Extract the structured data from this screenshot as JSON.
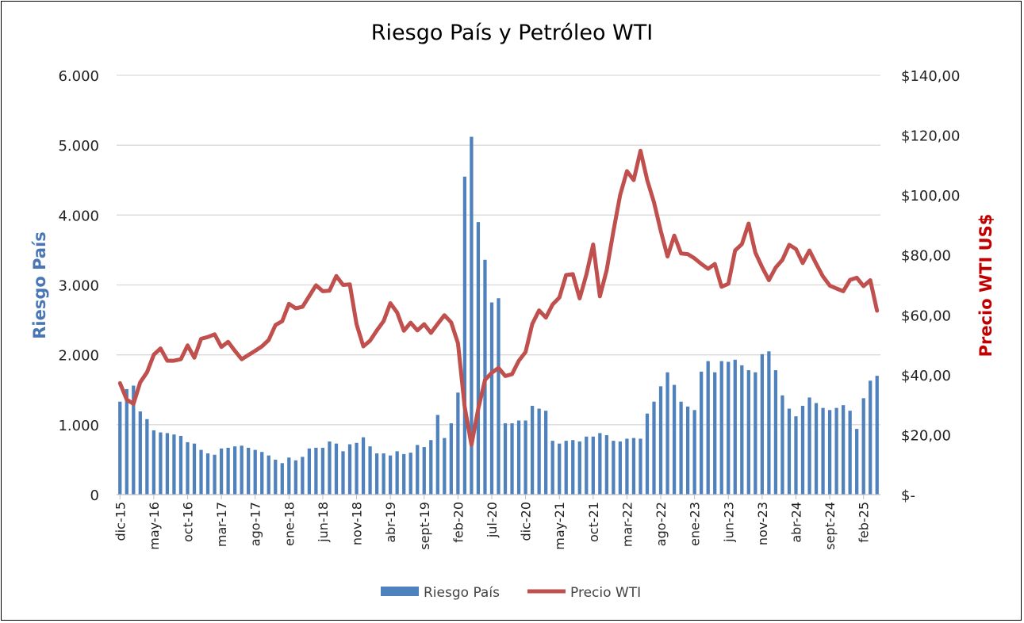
{
  "chart_data": {
    "type": "bar+line",
    "title": "Riesgo País y Petróleo WTI",
    "ylabel_left": "Riesgo País",
    "ylabel_right": "Precio WTI US$",
    "ylim_left": [
      0,
      6000
    ],
    "ylim_right": [
      0,
      140
    ],
    "left_ticks": [
      "0",
      "1.000",
      "2.000",
      "3.000",
      "4.000",
      "5.000",
      "6.000"
    ],
    "right_ticks": [
      "$-",
      "$20,00",
      "$40,00",
      "$60,00",
      "$80,00",
      "$100,00",
      "$120,00",
      "$140,00"
    ],
    "x_tick_labels": [
      "dic-15",
      "may-16",
      "oct-16",
      "mar-17",
      "ago-17",
      "ene-18",
      "jun-18",
      "nov-18",
      "abr-19",
      "sept-19",
      "feb-20",
      "jul-20",
      "dic-20",
      "may-21",
      "oct-21",
      "mar-22",
      "ago-22",
      "ene-23",
      "jun-23",
      "nov-23",
      "abr-24",
      "sept-24",
      "feb-25"
    ],
    "first_period": "dic-15",
    "grid": true,
    "legend_position": "bottom",
    "series": [
      {
        "name": "Riesgo País",
        "type": "bar",
        "axis": "left",
        "color": "#4f81bd",
        "values": [
          1330,
          1510,
          1560,
          1190,
          1080,
          920,
          890,
          880,
          860,
          840,
          750,
          730,
          640,
          590,
          570,
          660,
          670,
          690,
          700,
          670,
          640,
          610,
          560,
          500,
          450,
          530,
          490,
          540,
          660,
          670,
          670,
          760,
          730,
          620,
          720,
          740,
          820,
          690,
          590,
          590,
          560,
          620,
          580,
          600,
          710,
          680,
          780,
          1140,
          810,
          1020,
          1460,
          4550,
          5120,
          3900,
          3360,
          2750,
          2810,
          1020,
          1020,
          1060,
          1060,
          1270,
          1230,
          1200,
          770,
          730,
          770,
          780,
          760,
          830,
          830,
          880,
          850,
          770,
          760,
          800,
          810,
          800,
          1160,
          1330,
          1550,
          1750,
          1570,
          1330,
          1260,
          1210,
          1760,
          1910,
          1750,
          1910,
          1900,
          1930,
          1850,
          1780,
          1750,
          2010,
          2050,
          1780,
          1420,
          1230,
          1120,
          1270,
          1390,
          1310,
          1240,
          1210,
          1240,
          1280,
          1200,
          940,
          1380,
          1630,
          1700
        ]
      },
      {
        "name": "Precio WTI",
        "type": "line",
        "axis": "right",
        "color": "#c0504d",
        "values": [
          37.2,
          31.7,
          30.3,
          37.5,
          40.8,
          46.7,
          48.8,
          44.7,
          44.7,
          45.2,
          49.8,
          45.7,
          52.0,
          52.6,
          53.5,
          49.3,
          51.0,
          48.0,
          45.2,
          46.6,
          48.0,
          49.5,
          51.6,
          56.6,
          57.9,
          63.7,
          62.2,
          62.7,
          66.3,
          69.9,
          67.9,
          68.1,
          73.0,
          70.0,
          70.2,
          56.9,
          49.5,
          51.4,
          54.8,
          57.9,
          63.9,
          60.8,
          54.7,
          57.4,
          54.8,
          56.9,
          54.0,
          57.0,
          59.9,
          57.5,
          50.5,
          29.2,
          16.6,
          28.6,
          38.3,
          40.7,
          42.3,
          39.6,
          40.2,
          44.7,
          47.6,
          57.0,
          61.5,
          59.1,
          63.5,
          65.8,
          73.3,
          73.6,
          65.5,
          73.5,
          83.5,
          66.2,
          75.0,
          88.0,
          100.1,
          108.0,
          105.0,
          114.8,
          105.0,
          97.6,
          88.1,
          79.5,
          86.5,
          80.5,
          80.3,
          78.9,
          77.0,
          75.4,
          77.0,
          69.4,
          70.4,
          81.5,
          83.6,
          90.5,
          80.8,
          75.9,
          71.6,
          75.8,
          78.4,
          83.4,
          82.0,
          77.3,
          81.5,
          77.1,
          72.8,
          69.8,
          68.8,
          67.9,
          71.7,
          72.4,
          69.6,
          71.6,
          61.4
        ]
      }
    ]
  }
}
